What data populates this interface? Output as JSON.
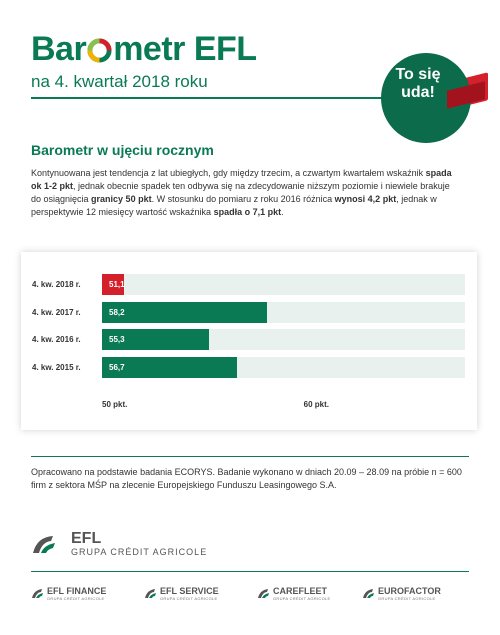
{
  "header": {
    "title_left": "Bar",
    "title_right": "metr EFL",
    "subtitle": "na 4. kwartał 2018 roku",
    "badge": "To się uda!",
    "colors": {
      "brand_green": "#0a7a54",
      "badge_green": "#0b6b4a",
      "accent_red": "#d4202b"
    }
  },
  "section": {
    "title": "Barometr w ujęciu rocznym",
    "paragraph": {
      "p1": "Kontynuowana jest tendencja z lat ubiegłych, gdy między trzecim, a czwartym kwartałem wskaźnik ",
      "b1": "spada ok 1-2 pkt",
      "p2": ", jednak obecnie spadek ten odbywa się na zdecydowanie niższym poziomie i niewiele brakuje do osiągnięcia ",
      "b2": "granicy 50 pkt",
      "p3": ". W stosunku do pomiaru z roku 2016 różnica ",
      "b3": "wynosi 4,2 pkt",
      "p4": ", jednak w perspektywie 12 miesięcy wartość wskaźnika ",
      "b4": "spadła o 7,1 pkt",
      "p5": "."
    }
  },
  "chart_data": {
    "type": "bar",
    "orientation": "horizontal",
    "categories": [
      "4. kw. 2018 r.",
      "4. kw. 2017 r.",
      "4. kw. 2016 r.",
      "4. kw. 2015 r."
    ],
    "values": [
      51.1,
      58.2,
      55.3,
      56.7
    ],
    "value_labels": [
      "51,1",
      "58,2",
      "55,3",
      "56,7"
    ],
    "bar_colors": [
      "#d4202b",
      "#0a7a54",
      "#0a7a54",
      "#0a7a54"
    ],
    "x_ticks": [
      "50 pkt.",
      "60 pkt."
    ],
    "xlim": [
      50,
      68
    ],
    "grid": false
  },
  "note": "Opracowano na podstawie badania ECORYS. Badanie wykonano w dniach 20.09 – 28.09 na próbie n = 600 firm z sektora MŚP na zlecenie Europejskiego Funduszu Leasingowego S.A.",
  "logo": {
    "name": "EFL",
    "group": "GRUPA CRÉDIT AGRICOLE"
  },
  "brands": [
    {
      "name": "EFL FINANCE",
      "sub": "GRUPA CRÉDIT AGRICOLE"
    },
    {
      "name": "EFL SERVICE",
      "sub": "GRUPA CRÉDIT AGRICOLE"
    },
    {
      "name": "CAREFLEET",
      "sub": "GRUPA CRÉDIT AGRICOLE"
    },
    {
      "name": "EUROFACTOR",
      "sub": "GRUPA CRÉDIT AGRICOLE"
    }
  ]
}
